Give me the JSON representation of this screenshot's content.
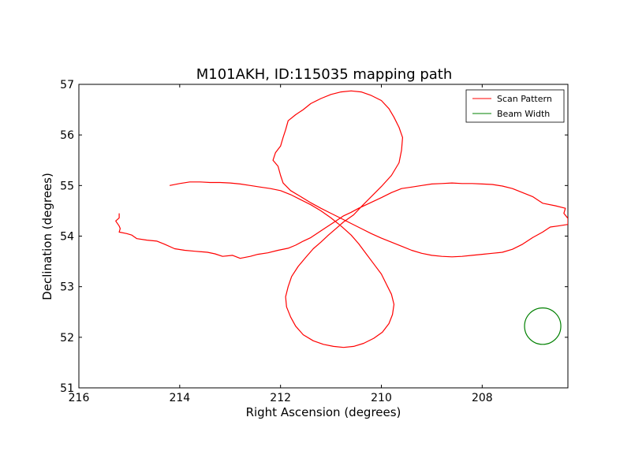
{
  "chart_data": {
    "type": "line",
    "title": "M101AKH, ID:115035 mapping path",
    "xlabel": "Right Ascension (degrees)",
    "ylabel": "Declination (degrees)",
    "xlim": [
      216,
      206.3
    ],
    "ylim": [
      51,
      57
    ],
    "x_inverted": true,
    "xticks": [
      216,
      214,
      212,
      210,
      208
    ],
    "yticks": [
      51,
      52,
      53,
      54,
      55,
      56,
      57
    ],
    "grid": false,
    "legend_position": "top-right",
    "colors": {
      "scan": "#ff0000",
      "beam": "#008000",
      "axes": "#000000"
    },
    "series": [
      {
        "name": "Scan Pattern",
        "kind": "line",
        "points": [
          [
            215.2,
            54.45
          ],
          [
            215.2,
            54.36
          ],
          [
            215.27,
            54.3
          ],
          [
            215.2,
            54.2
          ],
          [
            215.18,
            54.15
          ],
          [
            215.2,
            54.08
          ],
          [
            215.05,
            54.05
          ],
          [
            214.95,
            54.02
          ],
          [
            214.85,
            53.95
          ],
          [
            214.65,
            53.92
          ],
          [
            214.45,
            53.9
          ],
          [
            214.3,
            53.84
          ],
          [
            214.1,
            53.75
          ],
          [
            213.9,
            53.72
          ],
          [
            213.7,
            53.7
          ],
          [
            213.45,
            53.68
          ],
          [
            213.3,
            53.65
          ],
          [
            213.15,
            53.6
          ],
          [
            212.95,
            53.62
          ],
          [
            212.8,
            53.56
          ],
          [
            212.6,
            53.6
          ],
          [
            212.45,
            53.64
          ],
          [
            212.25,
            53.67
          ],
          [
            212.05,
            53.72
          ],
          [
            211.85,
            53.76
          ],
          [
            211.7,
            53.82
          ],
          [
            211.55,
            53.9
          ],
          [
            211.4,
            53.97
          ],
          [
            211.25,
            54.07
          ],
          [
            211.1,
            54.17
          ],
          [
            210.9,
            54.3
          ],
          [
            210.75,
            54.4
          ],
          [
            210.6,
            54.47
          ],
          [
            210.45,
            54.55
          ],
          [
            210.3,
            54.62
          ],
          [
            210.15,
            54.69
          ],
          [
            210.0,
            54.76
          ],
          [
            209.8,
            54.86
          ],
          [
            209.6,
            54.94
          ],
          [
            209.4,
            54.97
          ],
          [
            209.2,
            55.0
          ],
          [
            209.0,
            55.03
          ],
          [
            208.8,
            55.04
          ],
          [
            208.6,
            55.05
          ],
          [
            208.4,
            55.04
          ],
          [
            208.2,
            55.04
          ],
          [
            208.0,
            55.03
          ],
          [
            207.8,
            55.02
          ],
          [
            207.6,
            54.99
          ],
          [
            207.4,
            54.94
          ],
          [
            207.2,
            54.86
          ],
          [
            207.0,
            54.78
          ],
          [
            206.8,
            54.65
          ],
          [
            206.55,
            54.6
          ],
          [
            206.35,
            54.55
          ],
          [
            206.38,
            54.45
          ],
          [
            206.3,
            54.35
          ],
          [
            206.3,
            54.23
          ],
          [
            206.5,
            54.2
          ],
          [
            206.65,
            54.18
          ],
          [
            206.8,
            54.08
          ],
          [
            207.0,
            53.97
          ],
          [
            207.2,
            53.84
          ],
          [
            207.4,
            53.74
          ],
          [
            207.6,
            53.68
          ],
          [
            207.8,
            53.66
          ],
          [
            208.0,
            53.64
          ],
          [
            208.2,
            53.62
          ],
          [
            208.4,
            53.6
          ],
          [
            208.6,
            53.59
          ],
          [
            208.8,
            53.6
          ],
          [
            209.0,
            53.62
          ],
          [
            209.2,
            53.66
          ],
          [
            209.4,
            53.72
          ],
          [
            209.6,
            53.8
          ],
          [
            209.8,
            53.88
          ],
          [
            210.0,
            53.96
          ],
          [
            210.2,
            54.05
          ],
          [
            210.4,
            54.15
          ],
          [
            210.6,
            54.25
          ],
          [
            210.8,
            54.35
          ],
          [
            211.0,
            54.45
          ],
          [
            211.2,
            54.55
          ],
          [
            211.4,
            54.66
          ],
          [
            211.6,
            54.78
          ],
          [
            211.8,
            54.9
          ],
          [
            211.95,
            55.05
          ],
          [
            212.0,
            55.2
          ],
          [
            212.05,
            55.38
          ],
          [
            212.15,
            55.5
          ],
          [
            212.1,
            55.65
          ],
          [
            212.0,
            55.78
          ],
          [
            211.95,
            55.95
          ],
          [
            211.9,
            56.1
          ],
          [
            211.85,
            56.28
          ],
          [
            211.7,
            56.4
          ],
          [
            211.55,
            56.5
          ],
          [
            211.4,
            56.62
          ],
          [
            211.2,
            56.72
          ],
          [
            211.0,
            56.8
          ],
          [
            210.8,
            56.85
          ],
          [
            210.6,
            56.87
          ],
          [
            210.4,
            56.85
          ],
          [
            210.2,
            56.78
          ],
          [
            210.0,
            56.68
          ],
          [
            209.85,
            56.52
          ],
          [
            209.75,
            56.35
          ],
          [
            209.65,
            56.15
          ],
          [
            209.58,
            55.95
          ],
          [
            209.6,
            55.7
          ],
          [
            209.65,
            55.45
          ],
          [
            209.8,
            55.2
          ],
          [
            210.0,
            54.98
          ],
          [
            210.2,
            54.78
          ],
          [
            210.4,
            54.58
          ],
          [
            210.55,
            54.42
          ],
          [
            210.75,
            54.28
          ],
          [
            210.9,
            54.15
          ],
          [
            211.05,
            54.02
          ],
          [
            211.2,
            53.88
          ],
          [
            211.35,
            53.75
          ],
          [
            211.5,
            53.58
          ],
          [
            211.65,
            53.4
          ],
          [
            211.78,
            53.2
          ],
          [
            211.85,
            53.0
          ],
          [
            211.9,
            52.8
          ],
          [
            211.88,
            52.6
          ],
          [
            211.8,
            52.4
          ],
          [
            211.7,
            52.22
          ],
          [
            211.55,
            52.05
          ],
          [
            211.35,
            51.93
          ],
          [
            211.15,
            51.86
          ],
          [
            210.95,
            51.82
          ],
          [
            210.75,
            51.8
          ],
          [
            210.55,
            51.82
          ],
          [
            210.35,
            51.88
          ],
          [
            210.15,
            51.98
          ],
          [
            209.98,
            52.1
          ],
          [
            209.85,
            52.27
          ],
          [
            209.78,
            52.45
          ],
          [
            209.75,
            52.65
          ],
          [
            209.8,
            52.85
          ],
          [
            209.9,
            53.05
          ],
          [
            210.0,
            53.25
          ],
          [
            210.15,
            53.45
          ],
          [
            210.3,
            53.65
          ],
          [
            210.45,
            53.85
          ],
          [
            210.6,
            54.02
          ],
          [
            210.8,
            54.2
          ],
          [
            211.0,
            54.36
          ],
          [
            211.2,
            54.5
          ],
          [
            211.4,
            54.62
          ],
          [
            211.6,
            54.72
          ],
          [
            211.8,
            54.82
          ],
          [
            212.0,
            54.9
          ],
          [
            212.2,
            54.94
          ],
          [
            212.4,
            54.97
          ],
          [
            212.6,
            55.0
          ],
          [
            212.8,
            55.03
          ],
          [
            213.0,
            55.05
          ],
          [
            213.2,
            55.06
          ],
          [
            213.4,
            55.06
          ],
          [
            213.6,
            55.07
          ],
          [
            213.8,
            55.07
          ],
          [
            214.0,
            55.04
          ],
          [
            214.2,
            55.0
          ]
        ]
      },
      {
        "name": "Beam Width",
        "kind": "circle",
        "center": [
          206.8,
          52.22
        ],
        "radius_deg": 0.36
      }
    ]
  }
}
